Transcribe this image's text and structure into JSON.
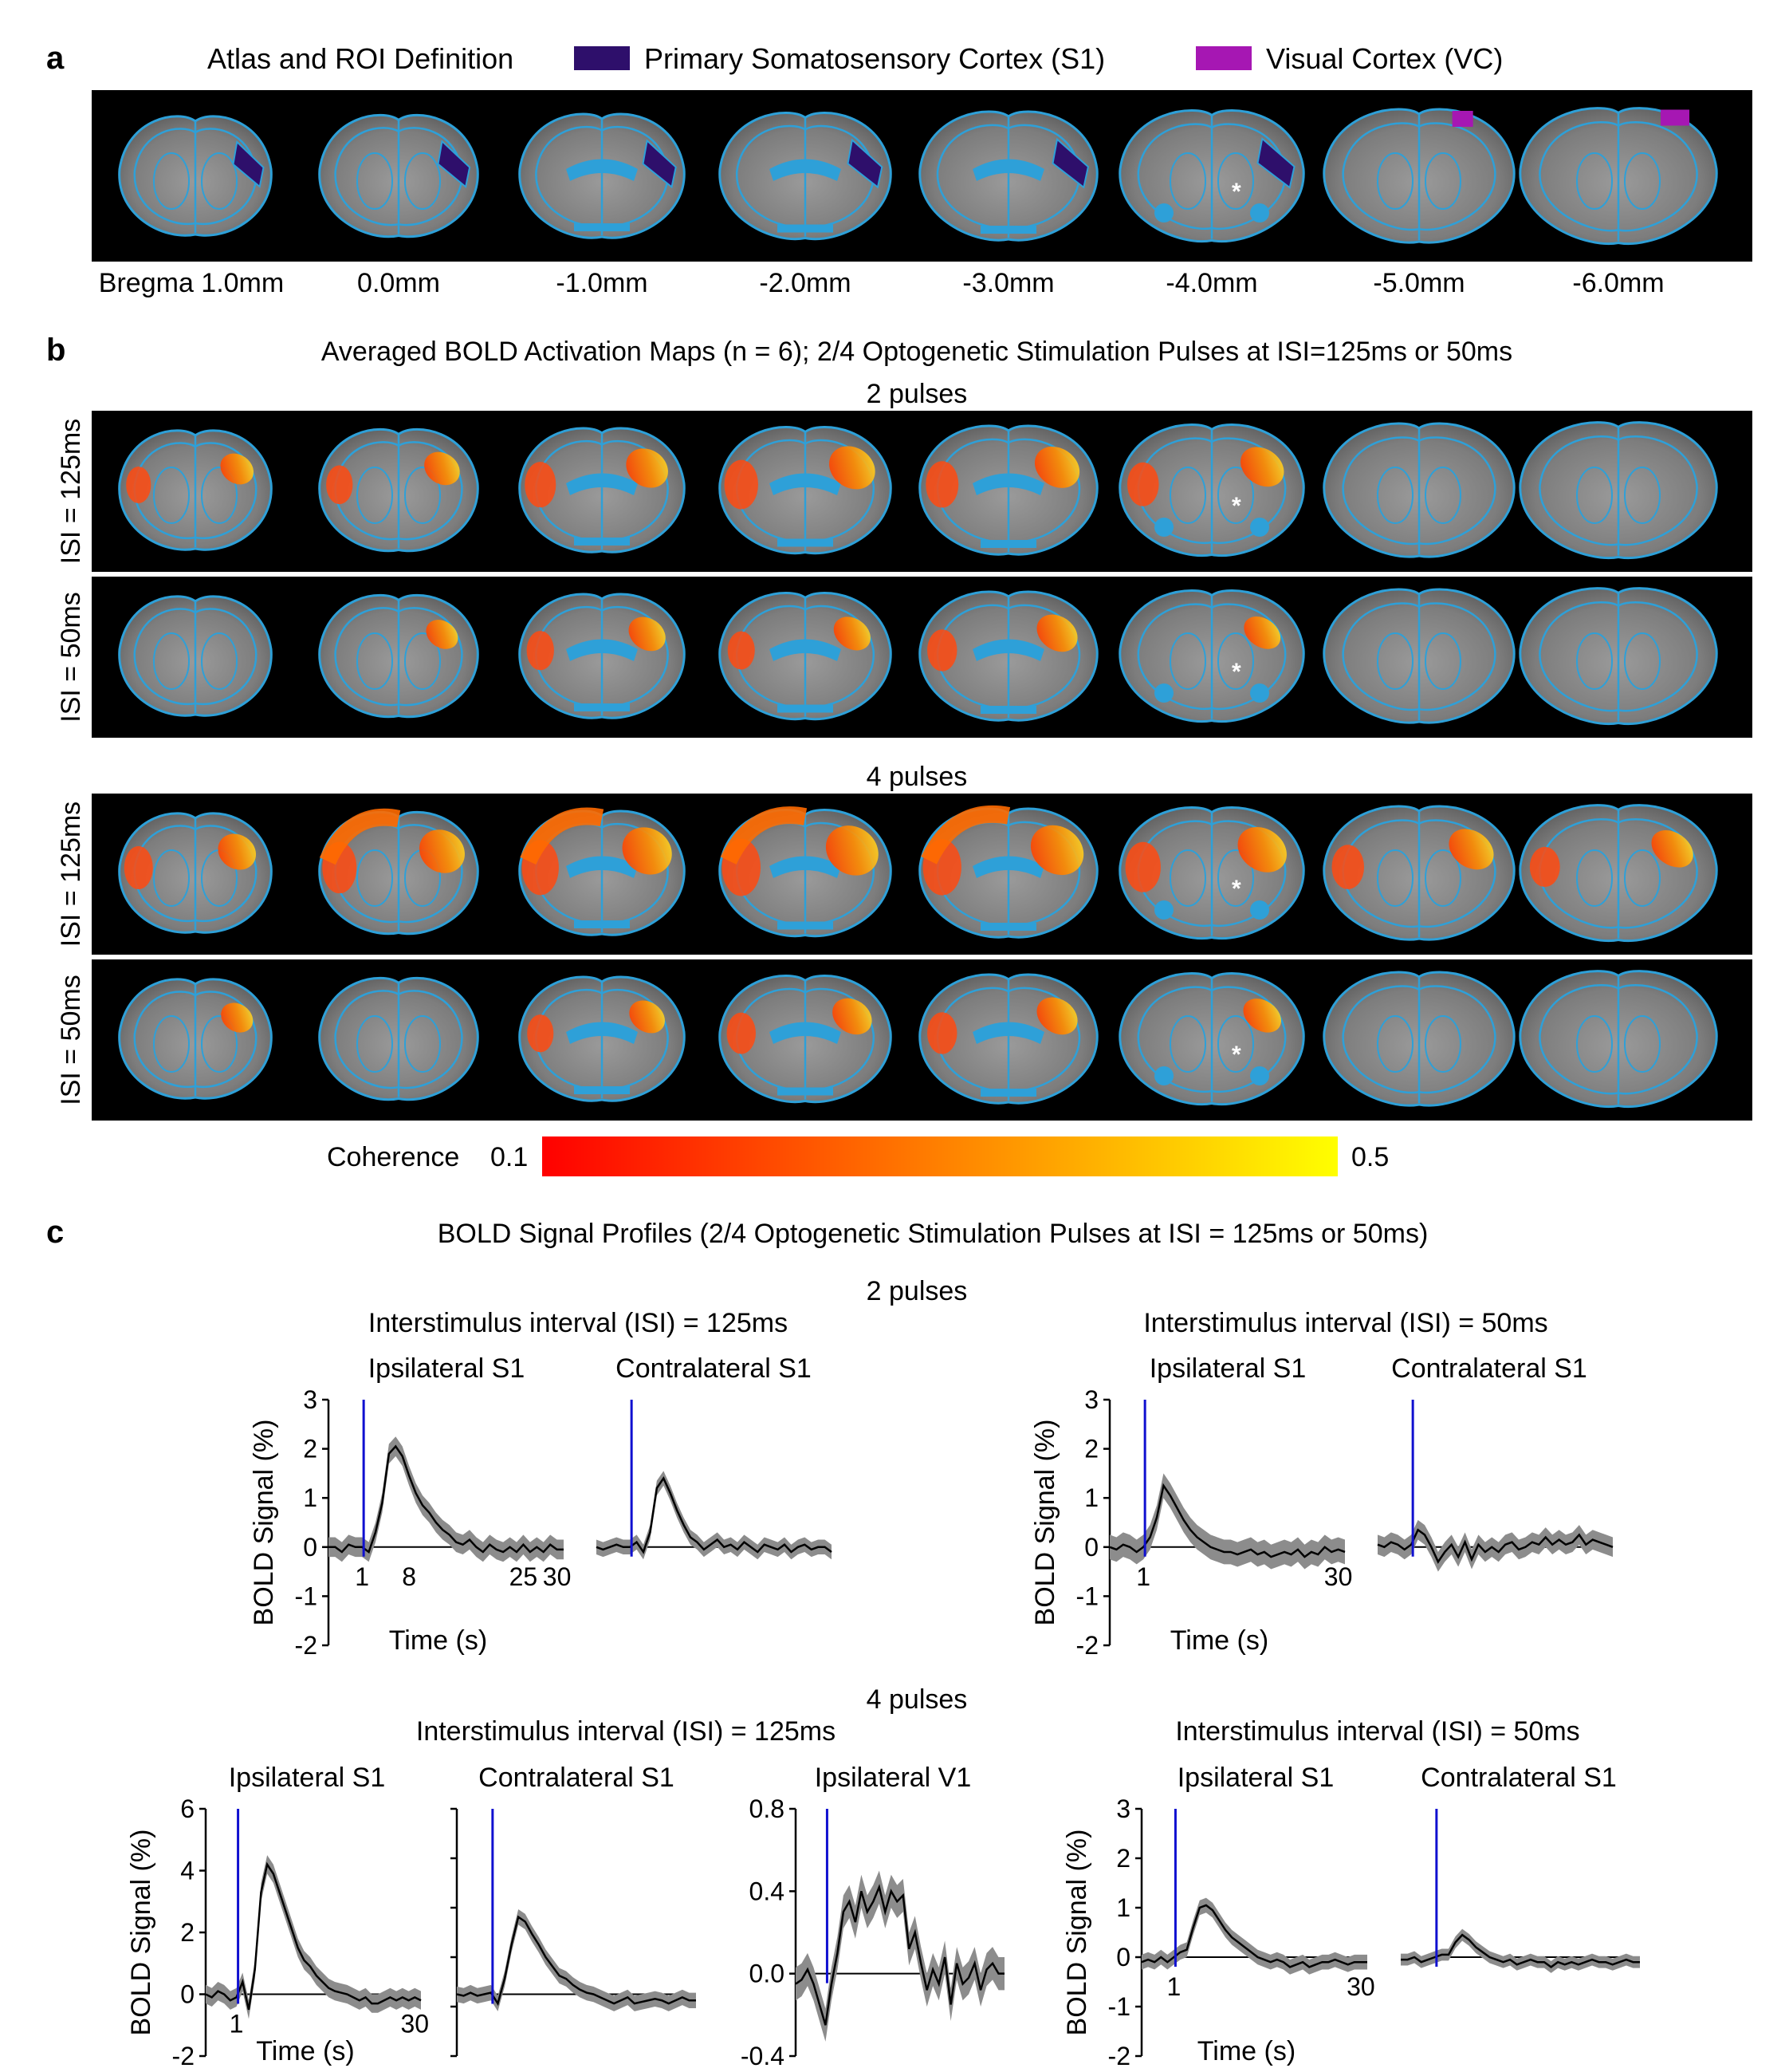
{
  "panel_a": {
    "letter": "a",
    "title": "Atlas and ROI Definition",
    "legend": [
      {
        "label": "Primary Somatosensory Cortex (S1)",
        "color": "#2e0f6b"
      },
      {
        "label": "Visual Cortex (VC)",
        "color": "#a617b3"
      }
    ],
    "slice_labels": [
      "Bregma 1.0mm",
      "0.0mm",
      "-1.0mm",
      "-2.0mm",
      "-3.0mm",
      "-4.0mm",
      "-5.0mm",
      "-6.0mm"
    ],
    "roi_by_slice": [
      "S1",
      "S1",
      "S1",
      "S1",
      "S1",
      "S1",
      "VC",
      "VC"
    ],
    "asterisk": "*"
  },
  "panel_b": {
    "letter": "b",
    "title": "Averaged BOLD Activation Maps (n = 6); 2/4 Optogenetic Stimulation Pulses at ISI=125ms or 50ms",
    "groups": [
      {
        "header": "2 pulses",
        "rows": [
          {
            "label": "ISI = 125ms",
            "activation": [
              0.35,
              0.4,
              0.6,
              0.7,
              0.6,
              0.5,
              0,
              0
            ]
          },
          {
            "label": "ISI = 50ms",
            "activation": [
              0,
              0.25,
              0.4,
              0.35,
              0.45,
              0.25,
              0,
              0
            ]
          }
        ]
      },
      {
        "header": "4 pulses",
        "rows": [
          {
            "label": "ISI = 125ms",
            "activation": [
              0.55,
              0.8,
              0.9,
              0.95,
              0.9,
              0.7,
              0.5,
              0.35
            ]
          },
          {
            "label": "ISI = 50ms",
            "activation": [
              0.3,
              0,
              0.35,
              0.45,
              0.45,
              0.3,
              0,
              0
            ]
          }
        ]
      }
    ],
    "colorbar": {
      "label": "Coherence",
      "min": "0.1",
      "max": "0.5",
      "colors": [
        "#ff0000",
        "#ff8000",
        "#ffff00"
      ]
    }
  },
  "panel_c": {
    "letter": "c",
    "title": "BOLD Signal Profiles (2/4 Optogenetic Stimulation Pulses at ISI = 125ms or 50ms)",
    "two_pulses_label": "2 pulses",
    "four_pulses_label": "4 pulses",
    "ylabel": "BOLD Signal (%)",
    "xlabel": "Time (s)"
  },
  "chart_data": [
    {
      "type": "line",
      "group": "2 pulses",
      "title": "Interstimulus interval (ISI) = 125ms",
      "subtitle": "Ipsilateral S1",
      "xlabel": "Time (s)",
      "ylabel": "BOLD Signal (%)",
      "xlim": [
        -4,
        31
      ],
      "ylim": [
        -2,
        3
      ],
      "yticks": [
        3,
        2,
        1,
        0,
        -1,
        -2
      ],
      "ytick_labels": [
        "3",
        "2",
        "1",
        "0",
        "-1",
        "-2"
      ],
      "xticks": [
        1,
        8,
        25,
        30
      ],
      "stim_x": 1,
      "x": [
        -4,
        -3,
        -2,
        -1,
        0,
        1,
        2,
        3,
        4,
        5,
        6,
        7,
        8,
        9,
        10,
        11,
        12,
        13,
        14,
        15,
        16,
        17,
        18,
        19,
        20,
        21,
        22,
        23,
        24,
        25,
        26,
        27,
        28,
        29,
        30,
        31
      ],
      "values": [
        0,
        0,
        -0.1,
        0.05,
        0,
        0,
        -0.1,
        0.3,
        0.9,
        1.9,
        2.05,
        1.85,
        1.45,
        1.1,
        0.85,
        0.7,
        0.5,
        0.35,
        0.25,
        0.1,
        0.05,
        0.15,
        0,
        -0.1,
        0.05,
        -0.05,
        -0.1,
        0,
        -0.1,
        0.05,
        -0.1,
        0,
        -0.1,
        0.05,
        -0.05,
        -0.05
      ],
      "sem": 0.2
    },
    {
      "type": "line",
      "group": "2 pulses",
      "title": "",
      "subtitle": "Contralateral S1",
      "xlim": [
        -4,
        31
      ],
      "ylim": [
        -2,
        3
      ],
      "stim_x": 1,
      "x": [
        -4,
        -3,
        -2,
        -1,
        0,
        1,
        2,
        3,
        4,
        5,
        6,
        7,
        8,
        9,
        10,
        11,
        12,
        13,
        14,
        15,
        16,
        17,
        18,
        19,
        20,
        21,
        22,
        23,
        24,
        25,
        26,
        27,
        28,
        29,
        30,
        31
      ],
      "values": [
        0,
        -0.05,
        0,
        0.05,
        0,
        0,
        0.1,
        -0.1,
        0.3,
        1.2,
        1.4,
        1.1,
        0.75,
        0.45,
        0.2,
        0.1,
        -0.05,
        0.05,
        0.15,
        0,
        0.05,
        -0.05,
        0.1,
        0,
        -0.1,
        0.05,
        0,
        -0.05,
        0.05,
        -0.1,
        0,
        0.05,
        -0.05,
        0,
        0,
        -0.1
      ],
      "sem": 0.15
    },
    {
      "type": "line",
      "group": "2 pulses",
      "title": "Interstimulus interval (ISI) = 50ms",
      "subtitle": "Ipsilateral S1",
      "xlabel": "Time (s)",
      "ylabel": "BOLD Signal (%)",
      "xlim": [
        -4,
        31
      ],
      "ylim": [
        -2,
        3
      ],
      "yticks": [
        3,
        2,
        1,
        0,
        -1,
        -2
      ],
      "ytick_labels": [
        "3",
        "2",
        "1",
        "0",
        "-1",
        "-2"
      ],
      "xticks": [
        1,
        30
      ],
      "stim_x": 1,
      "x": [
        -4,
        -3,
        -2,
        -1,
        0,
        1,
        2,
        3,
        4,
        5,
        6,
        7,
        8,
        9,
        10,
        11,
        12,
        13,
        14,
        15,
        16,
        17,
        18,
        19,
        20,
        21,
        22,
        23,
        24,
        25,
        26,
        27,
        28,
        29,
        30,
        31
      ],
      "values": [
        0,
        -0.05,
        0.05,
        0,
        -0.1,
        0,
        0.2,
        0.6,
        1.25,
        1.05,
        0.8,
        0.55,
        0.35,
        0.2,
        0.1,
        0,
        -0.05,
        -0.1,
        -0.1,
        -0.15,
        -0.1,
        -0.05,
        -0.15,
        -0.1,
        -0.2,
        -0.15,
        -0.1,
        -0.15,
        -0.05,
        -0.2,
        -0.1,
        -0.15,
        0,
        -0.1,
        -0.05,
        -0.1
      ],
      "sem": 0.25
    },
    {
      "type": "line",
      "group": "2 pulses",
      "title": "",
      "subtitle": "Contralateral S1",
      "xlim": [
        -4,
        31
      ],
      "ylim": [
        -2,
        3
      ],
      "stim_x": 1,
      "x": [
        -4,
        -3,
        -2,
        -1,
        0,
        1,
        2,
        3,
        4,
        5,
        6,
        7,
        8,
        9,
        10,
        11,
        12,
        13,
        14,
        15,
        16,
        17,
        18,
        19,
        20,
        21,
        22,
        23,
        24,
        25,
        26,
        27,
        28,
        29,
        30,
        31
      ],
      "values": [
        0.05,
        0,
        0.1,
        0.05,
        -0.05,
        0.05,
        0.35,
        0.25,
        0,
        -0.3,
        -0.1,
        0.05,
        -0.2,
        0.1,
        -0.25,
        0.05,
        -0.1,
        0,
        -0.1,
        0.05,
        0.1,
        -0.05,
        0,
        0.1,
        0.05,
        0.2,
        0.05,
        0.15,
        0.05,
        0.1,
        0.25,
        0.05,
        0.15,
        0.1,
        0.05,
        0
      ],
      "sem": 0.2
    },
    {
      "type": "line",
      "group": "4 pulses",
      "title": "",
      "subtitle": "Ipsilateral S1",
      "xlabel": "Time (s)",
      "ylabel": "BOLD Signal (%)",
      "xlim": [
        -4,
        31
      ],
      "ylim": [
        -2,
        6
      ],
      "yticks": [
        6,
        4,
        2,
        0,
        -2
      ],
      "ytick_labels": [
        "6",
        "4",
        "2",
        "0",
        "-2"
      ],
      "xticks": [
        1,
        30
      ],
      "stim_x": 1,
      "x": [
        -4,
        -3,
        -2,
        -1,
        0,
        1,
        2,
        3,
        4,
        5,
        6,
        7,
        8,
        9,
        10,
        11,
        12,
        13,
        14,
        15,
        16,
        17,
        18,
        19,
        20,
        21,
        22,
        23,
        24,
        25,
        26,
        27,
        28,
        29,
        30,
        31
      ],
      "values": [
        0,
        -0.1,
        0.1,
        0,
        -0.2,
        -0.1,
        0.4,
        -0.5,
        0.8,
        3.3,
        4.2,
        3.9,
        3.3,
        2.7,
        2.1,
        1.5,
        1.1,
        0.9,
        0.6,
        0.4,
        0.2,
        0.1,
        0.05,
        0,
        -0.1,
        -0.2,
        -0.1,
        -0.3,
        -0.3,
        -0.2,
        -0.1,
        -0.2,
        -0.1,
        -0.2,
        -0.1,
        -0.2
      ],
      "sem": 0.3
    },
    {
      "type": "line",
      "group": "4 pulses",
      "title": "Interstimulus interval (ISI) = 125ms",
      "subtitle": "Contralateral S1",
      "xlim": [
        -4,
        31
      ],
      "ylim": [
        -2,
        6
      ],
      "stim_x": 1,
      "x": [
        -4,
        -3,
        -2,
        -1,
        0,
        1,
        2,
        3,
        4,
        5,
        6,
        7,
        8,
        9,
        10,
        11,
        12,
        13,
        14,
        15,
        16,
        17,
        18,
        19,
        20,
        21,
        22,
        23,
        24,
        25,
        26,
        27,
        28,
        29,
        30,
        31
      ],
      "values": [
        0,
        -0.05,
        0.05,
        -0.05,
        0,
        0.05,
        -0.3,
        0.5,
        1.6,
        2.5,
        2.35,
        1.95,
        1.6,
        1.2,
        0.9,
        0.6,
        0.5,
        0.3,
        0.15,
        0.05,
        0,
        -0.1,
        -0.2,
        -0.3,
        -0.2,
        -0.1,
        -0.3,
        -0.25,
        -0.2,
        -0.15,
        -0.2,
        -0.3,
        -0.2,
        -0.1,
        -0.2,
        -0.2
      ],
      "sem": 0.25
    },
    {
      "type": "line",
      "group": "4 pulses",
      "title": "",
      "subtitle": "Ipsilateral V1",
      "xlim": [
        -4,
        31
      ],
      "ylim": [
        -0.4,
        0.8
      ],
      "yticks": [
        0.8,
        0.4,
        0.0,
        -0.4
      ],
      "ytick_labels": [
        "0.8",
        "0.4",
        "0.0",
        "-0.4"
      ],
      "stim_x": 1,
      "x": [
        -4,
        -3,
        -2,
        -1,
        0,
        1,
        2,
        3,
        4,
        5,
        6,
        7,
        8,
        9,
        10,
        11,
        12,
        13,
        14,
        15,
        16,
        17,
        18,
        19,
        20,
        21,
        22,
        23,
        24,
        25,
        26,
        27,
        28,
        29,
        30,
        31
      ],
      "values": [
        -0.05,
        -0.03,
        0.02,
        -0.05,
        -0.15,
        -0.25,
        -0.05,
        0.1,
        0.3,
        0.35,
        0.25,
        0.4,
        0.3,
        0.35,
        0.42,
        0.3,
        0.4,
        0.35,
        0.38,
        0.12,
        0.2,
        0.05,
        -0.08,
        0.02,
        -0.05,
        0.08,
        -0.15,
        0.05,
        -0.05,
        -0.02,
        0.05,
        -0.08,
        0.02,
        0.05,
        0,
        0
      ],
      "sem": 0.08
    },
    {
      "type": "line",
      "group": "4 pulses",
      "title": "Interstimulus interval (ISI) = 50ms",
      "subtitle": "Ipsilateral S1",
      "xlabel": "Time (s)",
      "ylabel": "BOLD Signal (%)",
      "xlim": [
        -4,
        31
      ],
      "ylim": [
        -2,
        3
      ],
      "yticks": [
        3,
        2,
        1,
        0,
        -1,
        -2
      ],
      "ytick_labels": [
        "3",
        "2",
        "1",
        "0",
        "-1",
        "-2"
      ],
      "xticks": [
        1,
        30
      ],
      "stim_x": 1,
      "x": [
        -4,
        -3,
        -2,
        -1,
        0,
        1,
        2,
        3,
        4,
        5,
        6,
        7,
        8,
        9,
        10,
        11,
        12,
        13,
        14,
        15,
        16,
        17,
        18,
        19,
        20,
        21,
        22,
        23,
        24,
        25,
        26,
        27,
        28,
        29,
        30,
        31
      ],
      "values": [
        -0.1,
        -0.05,
        -0.1,
        0,
        -0.1,
        0,
        0.1,
        0.15,
        0.6,
        1.0,
        1.05,
        0.95,
        0.75,
        0.55,
        0.4,
        0.3,
        0.2,
        0.1,
        0,
        -0.05,
        -0.1,
        -0.05,
        -0.1,
        -0.2,
        -0.15,
        -0.1,
        -0.2,
        -0.15,
        -0.1,
        -0.1,
        -0.05,
        -0.1,
        -0.15,
        -0.1,
        -0.1,
        -0.1
      ],
      "sem": 0.15
    },
    {
      "type": "line",
      "group": "4 pulses",
      "title": "",
      "subtitle": "Contralateral S1",
      "xlim": [
        -4,
        31
      ],
      "ylim": [
        -2,
        3
      ],
      "stim_x": 1,
      "x": [
        -4,
        -3,
        -2,
        -1,
        0,
        1,
        2,
        3,
        4,
        5,
        6,
        7,
        8,
        9,
        10,
        11,
        12,
        13,
        14,
        15,
        16,
        17,
        18,
        19,
        20,
        21,
        22,
        23,
        24,
        25,
        26,
        27,
        28,
        29,
        30,
        31
      ],
      "values": [
        -0.05,
        -0.05,
        0,
        -0.1,
        -0.05,
        0,
        0.05,
        0.05,
        0.3,
        0.45,
        0.35,
        0.2,
        0.1,
        0,
        -0.05,
        -0.1,
        -0.05,
        -0.15,
        -0.1,
        -0.05,
        -0.1,
        -0.1,
        -0.2,
        -0.1,
        -0.15,
        -0.1,
        -0.15,
        -0.1,
        -0.05,
        -0.1,
        -0.1,
        -0.15,
        -0.1,
        -0.05,
        -0.1,
        -0.1
      ],
      "sem": 0.12
    }
  ]
}
